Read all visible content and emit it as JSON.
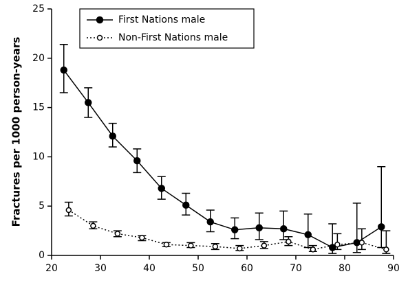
{
  "chart_data": {
    "type": "line",
    "y_label": "Fractures per 1000 person-years",
    "xlim": [
      20,
      90
    ],
    "xticks": [
      20,
      30,
      40,
      50,
      60,
      70,
      80,
      90
    ],
    "ylim": [
      0,
      25
    ],
    "yticks": [
      0,
      5,
      10,
      15,
      20,
      25
    ],
    "legend": "top-left",
    "series": [
      {
        "name": "First Nations male",
        "color": "#000000",
        "marker": "filled",
        "dash": "solid",
        "x": [
          22.5,
          27.5,
          32.5,
          37.5,
          42.5,
          47.5,
          52.5,
          57.5,
          62.5,
          67.5,
          72.5,
          77.5,
          82.5,
          87.5
        ],
        "values": [
          18.8,
          15.5,
          12.1,
          9.6,
          6.8,
          5.1,
          3.4,
          2.6,
          2.8,
          2.7,
          2.1,
          0.8,
          1.3,
          2.9
        ],
        "lower": [
          16.5,
          14,
          11,
          8.4,
          5.7,
          4.1,
          2.4,
          1.7,
          1.6,
          1.6,
          0.8,
          0.2,
          0.3,
          0.8
        ],
        "upper": [
          21.4,
          17,
          13.4,
          10.8,
          8,
          6.3,
          4.6,
          3.8,
          4.3,
          4.5,
          4.2,
          3.2,
          5.3,
          9
        ]
      },
      {
        "name": "Non-First Nations male",
        "color": "#000000",
        "marker": "open",
        "dash": "dotted",
        "x": [
          23.5,
          28.5,
          33.5,
          38.5,
          43.5,
          48.5,
          53.5,
          58.5,
          63.5,
          68.5,
          73.5,
          78.5,
          83.5,
          88.5
        ],
        "values": [
          4.6,
          3.0,
          2.2,
          1.8,
          1.1,
          1.0,
          0.9,
          0.7,
          1.0,
          1.4,
          0.6,
          1.1,
          1.3,
          0.6
        ],
        "lower": [
          4,
          2.7,
          1.9,
          1.5,
          0.9,
          0.8,
          0.6,
          0.5,
          0.7,
          1,
          0.4,
          0.6,
          0.6,
          0.2
        ],
        "upper": [
          5.4,
          3.4,
          2.5,
          2.0,
          1.3,
          1.3,
          1.2,
          1.0,
          1.4,
          1.9,
          1.0,
          2.2,
          2.7,
          2.5
        ]
      }
    ]
  }
}
